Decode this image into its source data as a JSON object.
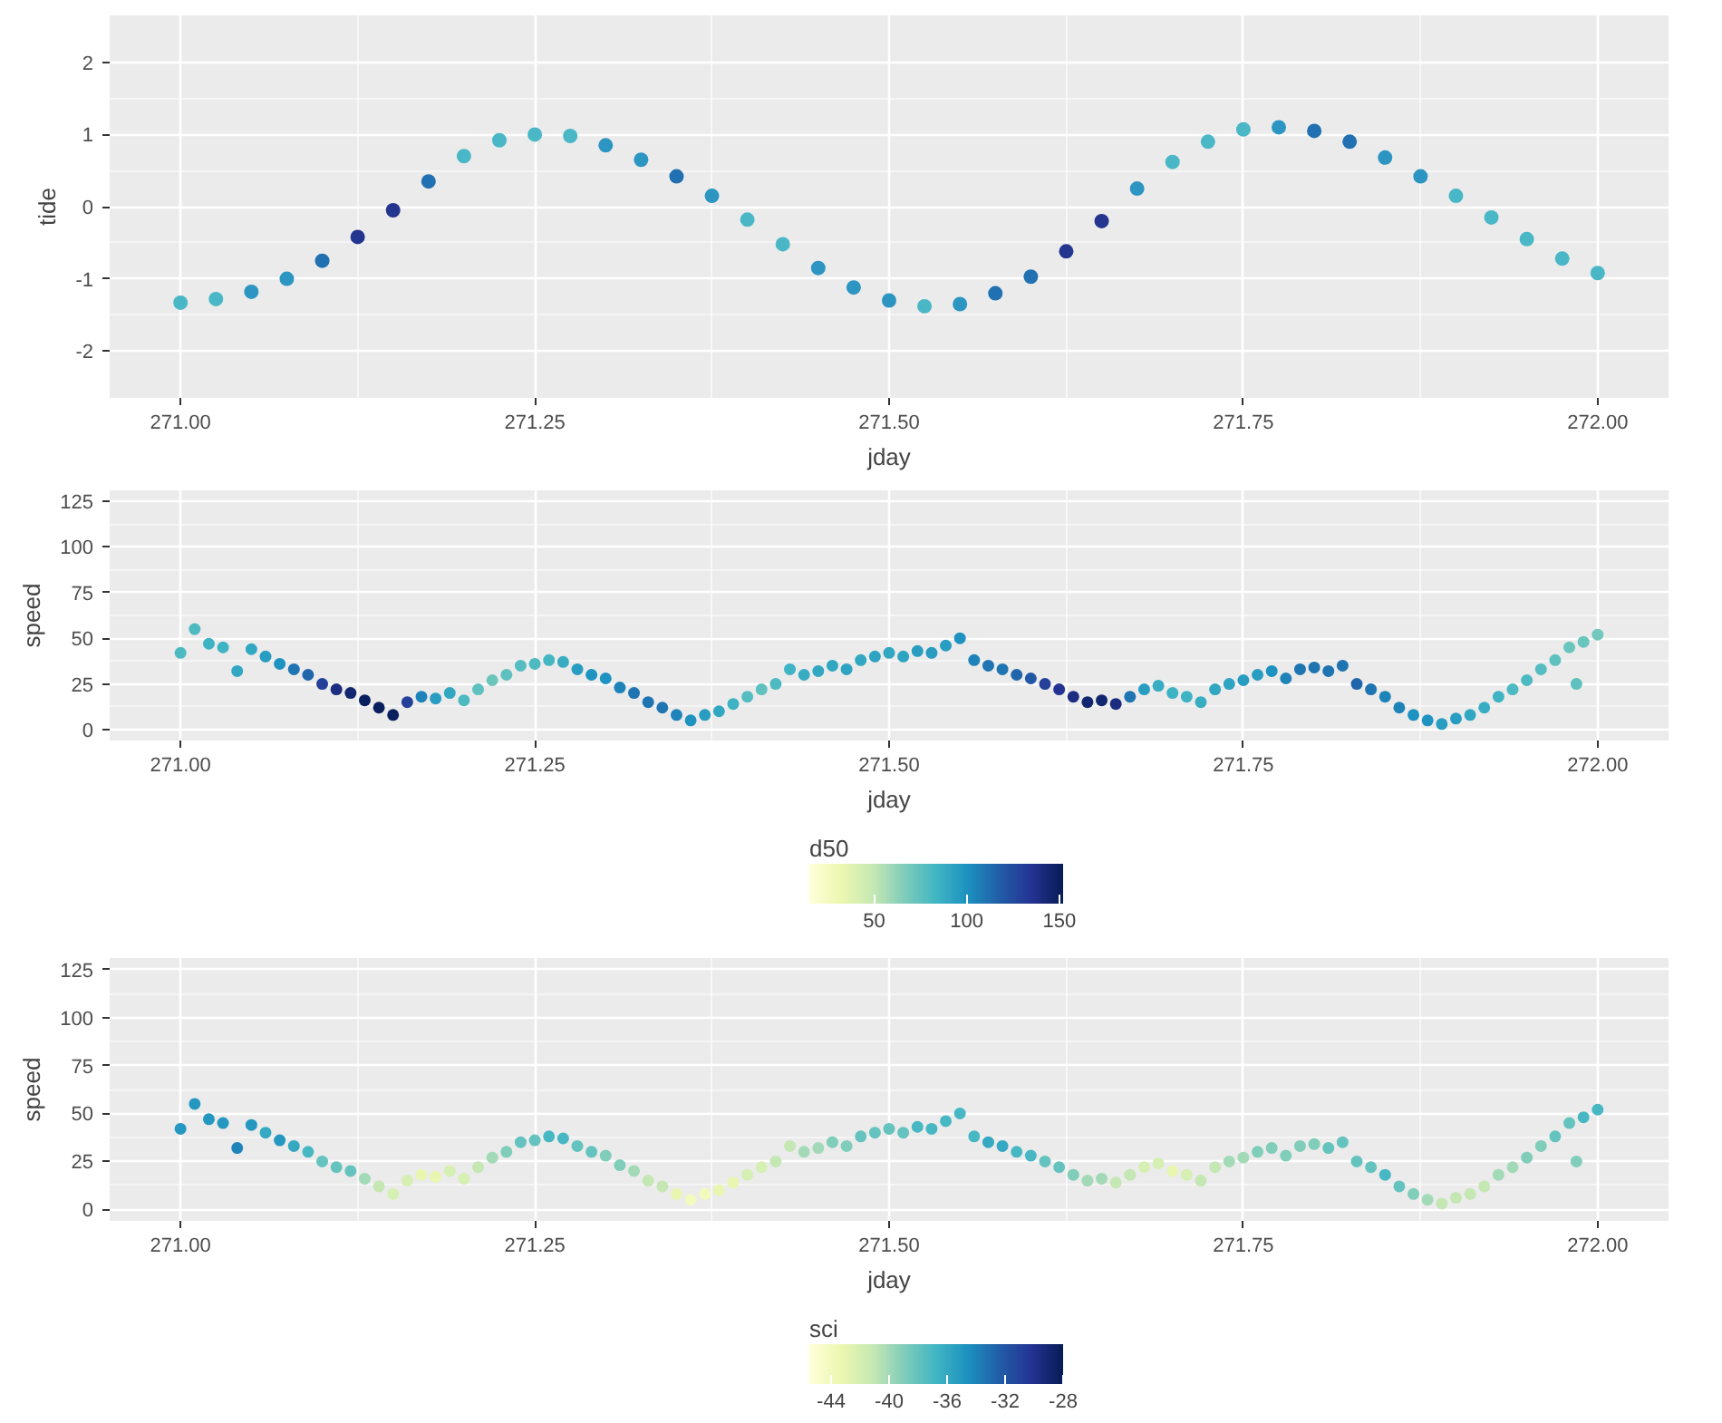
{
  "chart_data": [
    {
      "type": "scatter",
      "xlabel": "jday",
      "ylabel": "tide",
      "marker": "circle",
      "grid": true,
      "xlim": [
        270.95,
        272.05
      ],
      "ylim": [
        -2.65,
        2.65
      ],
      "xticks": [
        {
          "value": 271.0,
          "label": "271.00"
        },
        {
          "value": 271.25,
          "label": "271.25"
        },
        {
          "value": 271.5,
          "label": "271.50"
        },
        {
          "value": 271.75,
          "label": "271.75"
        },
        {
          "value": 272.0,
          "label": "272.00"
        }
      ],
      "yticks": [
        -2,
        -1,
        0,
        1,
        2
      ],
      "x": [
        271.0,
        271.025,
        271.05,
        271.075,
        271.1,
        271.125,
        271.15,
        271.175,
        271.2,
        271.225,
        271.25,
        271.275,
        271.3,
        271.325,
        271.35,
        271.375,
        271.4,
        271.425,
        271.45,
        271.475,
        271.5,
        271.525,
        271.55,
        271.575,
        271.6,
        271.625,
        271.65,
        271.675,
        271.7,
        271.725,
        271.75,
        271.775,
        271.8,
        271.825,
        271.85,
        271.875,
        271.9,
        271.925,
        271.95,
        271.975,
        272.0
      ],
      "values": [
        -1.33,
        -1.28,
        -1.18,
        -1.0,
        -0.75,
        -0.42,
        -0.05,
        0.35,
        0.7,
        0.92,
        1.0,
        0.98,
        0.85,
        0.65,
        0.42,
        0.15,
        -0.18,
        -0.52,
        -0.85,
        -1.12,
        -1.3,
        -1.38,
        -1.35,
        -1.2,
        -0.97,
        -0.62,
        -0.2,
        0.25,
        0.62,
        0.9,
        1.07,
        1.1,
        1.05,
        0.9,
        0.68,
        0.42,
        0.15,
        -0.15,
        -0.45,
        -0.72,
        -0.92
      ],
      "colors": [
        "#4ab7c7",
        "#4ab7c7",
        "#2c95c2",
        "#2c95c2",
        "#2170b1",
        "#24358f",
        "#24358f",
        "#2170b1",
        "#4ab7c7",
        "#4ab7c7",
        "#4ab7c7",
        "#4ab7c7",
        "#2c95c2",
        "#2c95c2",
        "#2170b1",
        "#2c95c2",
        "#4ab7c7",
        "#4ab7c7",
        "#2c95c2",
        "#2c95c2",
        "#2c95c2",
        "#4ab7c7",
        "#2c95c2",
        "#2170b1",
        "#2170b1",
        "#24358f",
        "#24358f",
        "#2c95c2",
        "#4ab7c7",
        "#4ab7c7",
        "#4ab7c7",
        "#2c95c2",
        "#2170b1",
        "#2170b1",
        "#2c95c2",
        "#2c95c2",
        "#4ab7c7",
        "#4ab7c7",
        "#4ab7c7",
        "#4ab7c7",
        "#4ab7c7"
      ]
    },
    {
      "type": "scatter",
      "xlabel": "jday",
      "ylabel": "speed",
      "marker": "circle",
      "grid": true,
      "clabel": "d50",
      "xlim": [
        270.95,
        272.05
      ],
      "ylim": [
        -6,
        131
      ],
      "xticks": [
        {
          "value": 271.0,
          "label": "271.00"
        },
        {
          "value": 271.25,
          "label": "271.25"
        },
        {
          "value": 271.5,
          "label": "271.50"
        },
        {
          "value": 271.75,
          "label": "271.75"
        },
        {
          "value": 272.0,
          "label": "272.00"
        }
      ],
      "yticks": [
        0,
        25,
        50,
        75,
        100,
        125
      ],
      "clim": [
        15,
        152
      ],
      "cticks": [
        50,
        100,
        150
      ],
      "x": [
        271.0,
        271.01,
        271.02,
        271.03,
        271.04,
        271.05,
        271.06,
        271.07,
        271.08,
        271.09,
        271.1,
        271.11,
        271.12,
        271.13,
        271.14,
        271.15,
        271.16,
        271.17,
        271.18,
        271.19,
        271.2,
        271.21,
        271.22,
        271.23,
        271.24,
        271.25,
        271.26,
        271.27,
        271.28,
        271.29,
        271.3,
        271.31,
        271.32,
        271.33,
        271.34,
        271.35,
        271.36,
        271.37,
        271.38,
        271.39,
        271.4,
        271.41,
        271.42,
        271.43,
        271.44,
        271.45,
        271.46,
        271.47,
        271.48,
        271.49,
        271.5,
        271.51,
        271.52,
        271.53,
        271.54,
        271.55,
        271.56,
        271.57,
        271.58,
        271.59,
        271.6,
        271.61,
        271.62,
        271.63,
        271.64,
        271.65,
        271.66,
        271.67,
        271.68,
        271.69,
        271.7,
        271.71,
        271.72,
        271.73,
        271.74,
        271.75,
        271.76,
        271.77,
        271.78,
        271.79,
        271.8,
        271.81,
        271.82,
        271.83,
        271.84,
        271.85,
        271.86,
        271.87,
        271.88,
        271.89,
        271.9,
        271.91,
        271.92,
        271.93,
        271.94,
        271.95,
        271.96,
        271.97,
        271.98,
        271.985,
        271.99,
        272.0
      ],
      "values": [
        42,
        55,
        47,
        45,
        32,
        44,
        40,
        36,
        33,
        30,
        25,
        22,
        20,
        16,
        12,
        8,
        15,
        18,
        17,
        20,
        16,
        22,
        27,
        30,
        35,
        36,
        38,
        37,
        33,
        30,
        28,
        23,
        20,
        15,
        12,
        8,
        5,
        8,
        10,
        14,
        18,
        22,
        25,
        33,
        30,
        32,
        35,
        33,
        38,
        40,
        42,
        40,
        43,
        42,
        46,
        50,
        38,
        35,
        33,
        30,
        28,
        25,
        22,
        18,
        15,
        16,
        14,
        18,
        22,
        24,
        20,
        18,
        15,
        22,
        25,
        27,
        30,
        32,
        28,
        33,
        34,
        32,
        35,
        25,
        22,
        18,
        12,
        8,
        5,
        3,
        6,
        8,
        12,
        18,
        22,
        27,
        33,
        38,
        45,
        25,
        48,
        52
      ],
      "cvalues": [
        80,
        80,
        85,
        85,
        90,
        90,
        95,
        100,
        110,
        115,
        130,
        140,
        145,
        150,
        150,
        150,
        130,
        105,
        95,
        90,
        80,
        75,
        72,
        75,
        78,
        80,
        82,
        88,
        95,
        100,
        100,
        105,
        110,
        110,
        110,
        105,
        100,
        95,
        90,
        85,
        78,
        75,
        80,
        85,
        88,
        90,
        90,
        92,
        90,
        92,
        90,
        92,
        95,
        95,
        95,
        100,
        105,
        110,
        110,
        115,
        120,
        130,
        135,
        140,
        145,
        145,
        140,
        110,
        95,
        88,
        85,
        85,
        88,
        90,
        92,
        95,
        95,
        100,
        105,
        110,
        110,
        110,
        110,
        115,
        110,
        105,
        105,
        100,
        100,
        95,
        95,
        90,
        88,
        85,
        80,
        80,
        78,
        75,
        72,
        75,
        72,
        70
      ]
    },
    {
      "type": "scatter",
      "xlabel": "jday",
      "ylabel": "speed",
      "marker": "circle",
      "grid": true,
      "clabel": "sci",
      "xlim": [
        270.95,
        272.05
      ],
      "ylim": [
        -6,
        131
      ],
      "xticks": [
        {
          "value": 271.0,
          "label": "271.00"
        },
        {
          "value": 271.25,
          "label": "271.25"
        },
        {
          "value": 271.5,
          "label": "271.50"
        },
        {
          "value": 271.75,
          "label": "271.75"
        },
        {
          "value": 272.0,
          "label": "272.00"
        }
      ],
      "yticks": [
        0,
        25,
        50,
        75,
        100,
        125
      ],
      "clim": [
        -45.5,
        -28
      ],
      "cticks": [
        -44,
        -40,
        -36,
        -32,
        -28
      ],
      "x": [
        271.0,
        271.01,
        271.02,
        271.03,
        271.04,
        271.05,
        271.06,
        271.07,
        271.08,
        271.09,
        271.1,
        271.11,
        271.12,
        271.13,
        271.14,
        271.15,
        271.16,
        271.17,
        271.18,
        271.19,
        271.2,
        271.21,
        271.22,
        271.23,
        271.24,
        271.25,
        271.26,
        271.27,
        271.28,
        271.29,
        271.3,
        271.31,
        271.32,
        271.33,
        271.34,
        271.35,
        271.36,
        271.37,
        271.38,
        271.39,
        271.4,
        271.41,
        271.42,
        271.43,
        271.44,
        271.45,
        271.46,
        271.47,
        271.48,
        271.49,
        271.5,
        271.51,
        271.52,
        271.53,
        271.54,
        271.55,
        271.56,
        271.57,
        271.58,
        271.59,
        271.6,
        271.61,
        271.62,
        271.63,
        271.64,
        271.65,
        271.66,
        271.67,
        271.68,
        271.69,
        271.7,
        271.71,
        271.72,
        271.73,
        271.74,
        271.75,
        271.76,
        271.77,
        271.78,
        271.79,
        271.8,
        271.81,
        271.82,
        271.83,
        271.84,
        271.85,
        271.86,
        271.87,
        271.88,
        271.89,
        271.9,
        271.91,
        271.92,
        271.93,
        271.94,
        271.95,
        271.96,
        271.97,
        271.98,
        271.985,
        271.99,
        272.0
      ],
      "values": [
        42,
        55,
        47,
        45,
        32,
        44,
        40,
        36,
        33,
        30,
        25,
        22,
        20,
        16,
        12,
        8,
        15,
        18,
        17,
        20,
        16,
        22,
        27,
        30,
        35,
        36,
        38,
        37,
        33,
        30,
        28,
        23,
        20,
        15,
        12,
        8,
        5,
        8,
        10,
        14,
        18,
        22,
        25,
        33,
        30,
        32,
        35,
        33,
        38,
        40,
        42,
        40,
        43,
        42,
        46,
        50,
        38,
        35,
        33,
        30,
        28,
        25,
        22,
        18,
        15,
        16,
        14,
        18,
        22,
        24,
        20,
        18,
        15,
        22,
        25,
        27,
        30,
        32,
        28,
        33,
        34,
        32,
        35,
        25,
        22,
        18,
        12,
        8,
        5,
        3,
        6,
        8,
        12,
        18,
        22,
        27,
        33,
        38,
        45,
        25,
        48,
        52
      ],
      "cvalues": [
        -35,
        -35,
        -35,
        -35,
        -34,
        -35,
        -36,
        -35,
        -36,
        -37,
        -38,
        -38,
        -38,
        -40,
        -41,
        -42,
        -42,
        -43,
        -43,
        -42,
        -42,
        -41,
        -40,
        -39,
        -38,
        -38,
        -37,
        -37,
        -38,
        -38,
        -39,
        -39,
        -40,
        -41,
        -41,
        -43,
        -44,
        -44,
        -43,
        -43,
        -42,
        -42,
        -41,
        -41,
        -40,
        -40,
        -39,
        -39,
        -38,
        -38,
        -38,
        -38,
        -37,
        -37,
        -37,
        -37,
        -37,
        -36,
        -36,
        -37,
        -37,
        -38,
        -38,
        -39,
        -40,
        -40,
        -41,
        -41,
        -42,
        -42,
        -43,
        -42,
        -41,
        -41,
        -40,
        -40,
        -39,
        -39,
        -39,
        -39,
        -39,
        -38,
        -38,
        -38,
        -38,
        -37,
        -38,
        -39,
        -40,
        -41,
        -41,
        -41,
        -41,
        -40,
        -40,
        -39,
        -39,
        -38,
        -38,
        -39,
        -37,
        -37
      ]
    }
  ]
}
